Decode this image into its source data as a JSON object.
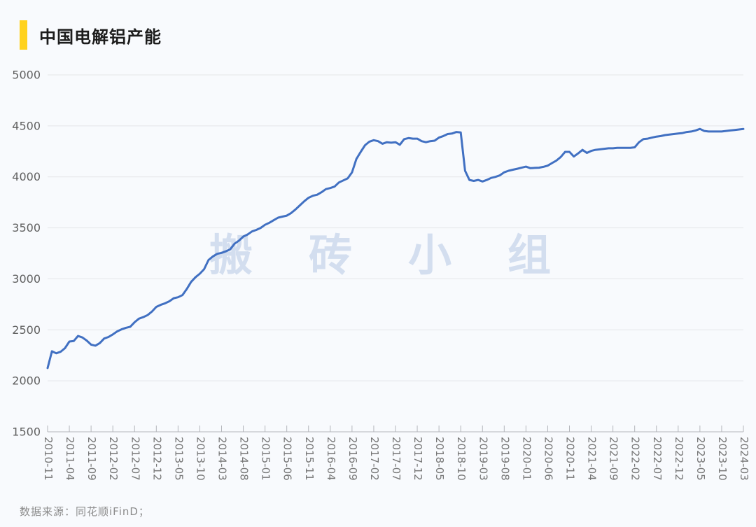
{
  "page": {
    "background": "#f8fafd"
  },
  "header": {
    "title": "中国电解铝产能",
    "accent_color": "#ffd21e"
  },
  "watermark": {
    "text": "搬砖小组",
    "color": "#d3deef"
  },
  "footer": {
    "source_text": "数据来源：同花顺iFinD；"
  },
  "chart_data": {
    "type": "line",
    "title": "中国电解铝产能",
    "line_color": "#4170c2",
    "grid": true,
    "legend_position": "none",
    "ylim": [
      1500,
      5000
    ],
    "yticks": [
      1500,
      2000,
      2500,
      3000,
      3500,
      4000,
      4500,
      5000
    ],
    "x_start": "2010-11",
    "x_end": "2024-03",
    "x_freq": "monthly",
    "xtick_every_months": 5,
    "xtick_labels": [
      "2010-11",
      "2011-04",
      "2011-09",
      "2012-02",
      "2012-07",
      "2012-12",
      "2013-05",
      "2013-10",
      "2014-03",
      "2014-08",
      "2015-01",
      "2015-06",
      "2015-11",
      "2016-04",
      "2016-09",
      "2017-02",
      "2017-07",
      "2017-12",
      "2018-05",
      "2018-10",
      "2019-03",
      "2019-08",
      "2020-01",
      "2020-06",
      "2020-11",
      "2021-04",
      "2021-09",
      "2022-02",
      "2022-07",
      "2022-12",
      "2023-05",
      "2023-10",
      "2024-03"
    ],
    "values": [
      2125,
      2290,
      2270,
      2285,
      2320,
      2385,
      2390,
      2440,
      2425,
      2395,
      2355,
      2345,
      2370,
      2415,
      2430,
      2455,
      2485,
      2505,
      2520,
      2530,
      2575,
      2610,
      2625,
      2645,
      2680,
      2725,
      2745,
      2760,
      2780,
      2810,
      2820,
      2840,
      2900,
      2970,
      3015,
      3050,
      3095,
      3185,
      3220,
      3245,
      3255,
      3270,
      3290,
      3345,
      3375,
      3415,
      3435,
      3465,
      3480,
      3500,
      3530,
      3550,
      3575,
      3600,
      3610,
      3620,
      3645,
      3680,
      3720,
      3760,
      3795,
      3815,
      3825,
      3850,
      3880,
      3890,
      3905,
      3945,
      3965,
      3985,
      4045,
      4175,
      4245,
      4310,
      4345,
      4360,
      4350,
      4325,
      4340,
      4335,
      4340,
      4315,
      4370,
      4380,
      4375,
      4375,
      4350,
      4340,
      4350,
      4355,
      4385,
      4400,
      4420,
      4425,
      4440,
      4435,
      4060,
      3970,
      3960,
      3970,
      3955,
      3970,
      3990,
      4000,
      4015,
      4045,
      4060,
      4070,
      4080,
      4090,
      4100,
      4085,
      4088,
      4090,
      4098,
      4110,
      4135,
      4160,
      4195,
      4245,
      4245,
      4200,
      4230,
      4265,
      4235,
      4255,
      4265,
      4270,
      4275,
      4280,
      4280,
      4285,
      4285,
      4285,
      4285,
      4290,
      4340,
      4370,
      4375,
      4385,
      4395,
      4400,
      4410,
      4415,
      4420,
      4425,
      4430,
      4440,
      4445,
      4455,
      4470,
      4450,
      4445,
      4445,
      4445,
      4445,
      4450,
      4455,
      4460,
      4465,
      4470
    ],
    "colors": {
      "grid": "#e4e5e8",
      "axis": "#b4b6bb",
      "ytick_label": "#5f5f5f",
      "xtick_label": "#767676"
    }
  }
}
